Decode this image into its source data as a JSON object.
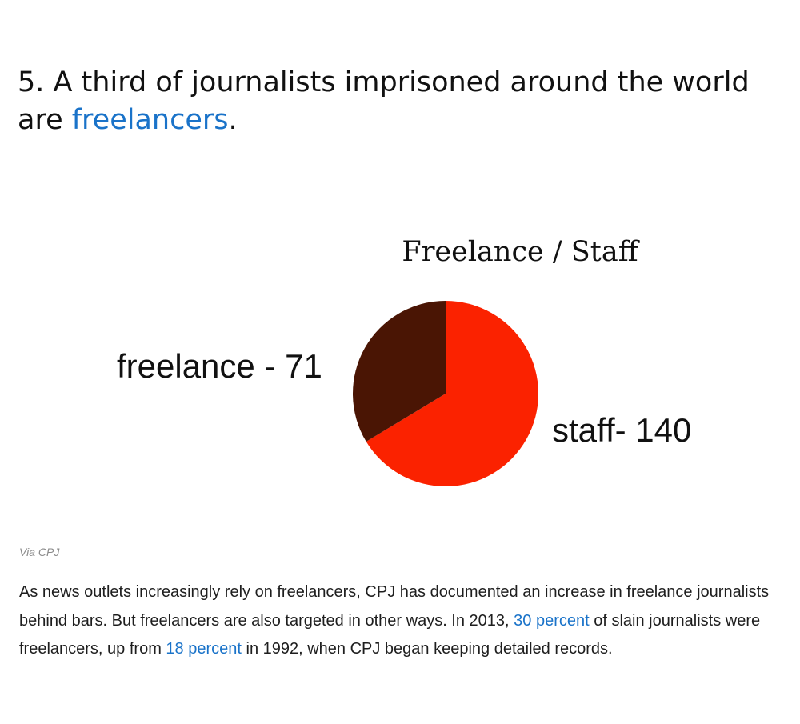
{
  "article": {
    "heading_prefix": "5. A third of journalists imprisoned around the world are ",
    "heading_link": "freelancers",
    "heading_suffix": ".",
    "credit": "Via CPJ",
    "para_1": "As news outlets increasingly rely on freelancers, CPJ has documented an increase in freelance journalists behind bars. But freelancers are also targeted in other ways. In 2013, ",
    "link_1": "30 percent",
    "para_2": " of slain journalists were freelancers, up from ",
    "link_2": "18 percent",
    "para_3": " in 1992, when CPJ began keeping detailed records.",
    "link_color": "#1a73c9"
  },
  "chart_data": {
    "type": "pie",
    "title": "Freelance / Staff",
    "slices": [
      {
        "name": "freelance",
        "value": 71,
        "label": "freelance - 71",
        "color": "#4a1504"
      },
      {
        "name": "staff",
        "value": 140,
        "label": "staff- 140",
        "color": "#fb2200"
      }
    ],
    "start": "12 o'clock",
    "direction": "clockwise from staff"
  }
}
